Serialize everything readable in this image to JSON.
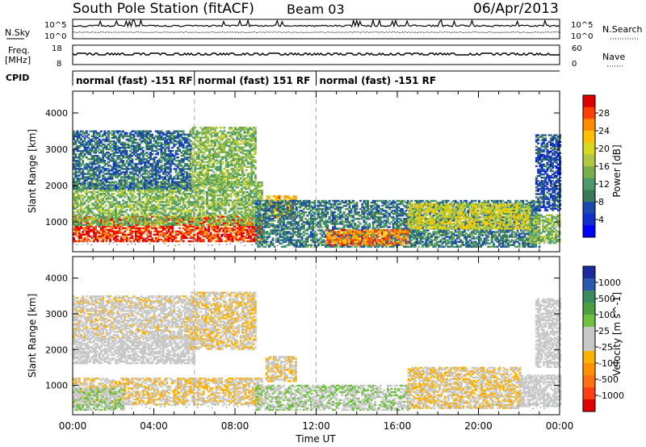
{
  "header": {
    "station": "South Pole Station (fitACF)",
    "beam": "Beam 03",
    "date": "06/Apr/2013"
  },
  "noise_panel": {
    "left_label": "N.Sky",
    "right_label": "N.Search",
    "ticks": [
      "10^5",
      "10^0"
    ]
  },
  "freq_panel": {
    "left_label_1": "Freq.",
    "left_label_2": "[MHz]",
    "left_ticks": [
      "18",
      "8"
    ],
    "right_label": "Nave",
    "right_ticks": [
      "60",
      "0"
    ]
  },
  "cpid": {
    "label": "CPID",
    "segments": [
      {
        "start_hour": 0,
        "text": "normal (fast) -151 RF"
      },
      {
        "start_hour": 6,
        "text": "normal (fast) 151 RF"
      },
      {
        "start_hour": 12,
        "text": "normal (fast) -151 RF"
      }
    ]
  },
  "power_colorbar": {
    "title": "Power [dB]",
    "labels": [
      "28",
      "24",
      "20",
      "16",
      "12",
      "8",
      "4"
    ],
    "colors": [
      "#e00000",
      "#ff4000",
      "#ff8c00",
      "#ffc000",
      "#d8d820",
      "#b0c840",
      "#7ab04a",
      "#4a9a6a",
      "#3a7a58",
      "#1a4ab0",
      "#1030d0",
      "#0000ff"
    ]
  },
  "velocity_colorbar": {
    "title": "Velocity [m s^-1]",
    "labels": [
      "1000",
      "500",
      "100",
      "25",
      "-25",
      "-100",
      "-500",
      "-1000"
    ],
    "colors": [
      "#1a2aa0",
      "#2a5ab0",
      "#3a8a60",
      "#4aa040",
      "#70c040",
      "#c8c8c8",
      "#c8c8c8",
      "#ffb000",
      "#ff9000",
      "#ff7010",
      "#ff4010",
      "#e00000"
    ]
  },
  "chart_data": [
    {
      "type": "heatmap",
      "name": "power",
      "ylabel": "Slant Range [km]",
      "xlabel": "Time UT",
      "x_tick_labels": [
        "00:00",
        "04:00",
        "08:00",
        "12:00",
        "16:00",
        "20:00",
        "00:00"
      ],
      "y_tick_labels": [
        "1000",
        "2000",
        "3000",
        "4000"
      ],
      "xlim": [
        0,
        24
      ],
      "ylim": [
        180,
        4600
      ],
      "clim_db": [
        0,
        30
      ],
      "regions": [
        {
          "t0": 0.0,
          "t1": 9.3,
          "r0": 450,
          "r1": 1150,
          "value": 27
        },
        {
          "t0": 0.0,
          "t1": 9.3,
          "r0": 900,
          "r1": 2100,
          "value": 14
        },
        {
          "t0": 0.0,
          "t1": 5.8,
          "r0": 1900,
          "r1": 3500,
          "value": 8
        },
        {
          "t0": 5.8,
          "t1": 9.0,
          "r0": 2000,
          "r1": 3600,
          "value": 14
        },
        {
          "t0": 9.5,
          "t1": 11.0,
          "r0": 1100,
          "r1": 1700,
          "value": 22
        },
        {
          "t0": 9.0,
          "t1": 23.0,
          "r0": 300,
          "r1": 1600,
          "value": 9
        },
        {
          "t0": 12.5,
          "t1": 16.5,
          "r0": 350,
          "r1": 800,
          "value": 24
        },
        {
          "t0": 16.5,
          "t1": 22.5,
          "r0": 800,
          "r1": 1500,
          "value": 18
        },
        {
          "t0": 22.5,
          "t1": 24.0,
          "r0": 400,
          "r1": 1200,
          "value": 14
        },
        {
          "t0": 22.8,
          "t1": 24.0,
          "r0": 1300,
          "r1": 3400,
          "value": 6
        }
      ]
    },
    {
      "type": "heatmap",
      "name": "velocity",
      "ylabel": "Slant Range [km]",
      "xlabel": "Time UT",
      "x_tick_labels": [
        "00:00",
        "04:00",
        "08:00",
        "12:00",
        "16:00",
        "20:00",
        "00:00"
      ],
      "y_tick_labels": [
        "1000",
        "2000",
        "3000",
        "4000"
      ],
      "xlim": [
        0,
        24
      ],
      "ylim": [
        180,
        4600
      ],
      "clim_ms": [
        -1000,
        1000
      ],
      "regions": [
        {
          "t0": 0.0,
          "t1": 9.3,
          "r0": 450,
          "r1": 1200,
          "value": -150
        },
        {
          "t0": 0.0,
          "t1": 2.5,
          "r0": 300,
          "r1": 900,
          "value": 150
        },
        {
          "t0": 0.0,
          "t1": 6.0,
          "r0": 1600,
          "r1": 2300,
          "value": 0
        },
        {
          "t0": 0.0,
          "t1": 5.8,
          "r0": 2300,
          "r1": 3500,
          "value": -120
        },
        {
          "t0": 5.8,
          "t1": 9.0,
          "r0": 2000,
          "r1": 3600,
          "value": -150
        },
        {
          "t0": 9.5,
          "t1": 11.0,
          "r0": 1100,
          "r1": 1800,
          "value": -150
        },
        {
          "t0": 9.0,
          "t1": 16.5,
          "r0": 300,
          "r1": 1000,
          "value": 150
        },
        {
          "t0": 16.5,
          "t1": 22.0,
          "r0": 350,
          "r1": 1500,
          "value": -160
        },
        {
          "t0": 22.0,
          "t1": 24.0,
          "r0": 400,
          "r1": 1300,
          "value": 80
        },
        {
          "t0": 22.8,
          "t1": 24.0,
          "r0": 1500,
          "r1": 3400,
          "value": 0
        }
      ]
    }
  ]
}
